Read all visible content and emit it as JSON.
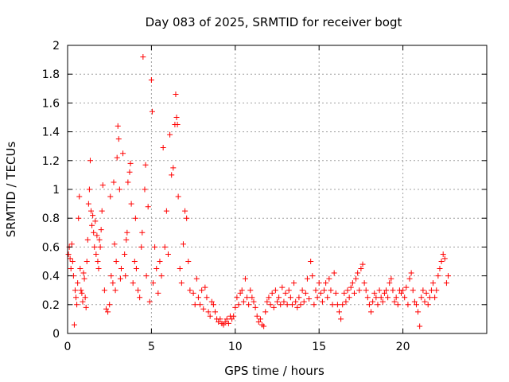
{
  "chart_data": {
    "type": "scatter",
    "title": "Day 083 of 2025, SRMTID for receiver bogt",
    "xlabel": "GPS time / hours",
    "ylabel": "SRMTID / TECUs",
    "xlim": [
      0,
      25
    ],
    "ylim": [
      0,
      2
    ],
    "xticks": [
      0,
      5,
      10,
      15,
      20
    ],
    "xtick_labels": [
      "0",
      "5",
      "10",
      "15",
      "20"
    ],
    "yticks": [
      0,
      0.2,
      0.4,
      0.6,
      0.8,
      1,
      1.2,
      1.4,
      1.6,
      1.8,
      2
    ],
    "ytick_labels": [
      "0",
      "0.2",
      "0.4",
      "0.6",
      "0.8",
      "1",
      "1.2",
      "1.4",
      "1.6",
      "1.8",
      "2"
    ],
    "grid": true,
    "marker": "+",
    "series": [
      {
        "name": "SRMTID",
        "color": "#ff0000",
        "points": [
          [
            0.05,
            0.55
          ],
          [
            0.1,
            0.6
          ],
          [
            0.15,
            0.52
          ],
          [
            0.2,
            0.45
          ],
          [
            0.25,
            0.62
          ],
          [
            0.3,
            0.5
          ],
          [
            0.35,
            0.4
          ],
          [
            0.4,
            0.06
          ],
          [
            0.45,
            0.3
          ],
          [
            0.5,
            0.25
          ],
          [
            0.55,
            0.2
          ],
          [
            0.6,
            0.35
          ],
          [
            0.65,
            0.8
          ],
          [
            0.7,
            0.95
          ],
          [
            0.75,
            0.45
          ],
          [
            0.8,
            0.3
          ],
          [
            0.85,
            0.28
          ],
          [
            0.9,
            0.22
          ],
          [
            0.95,
            0.42
          ],
          [
            1.0,
            0.38
          ],
          [
            1.05,
            0.25
          ],
          [
            1.1,
            0.18
          ],
          [
            1.15,
            0.5
          ],
          [
            1.2,
            0.65
          ],
          [
            1.25,
            0.9
          ],
          [
            1.3,
            1.0
          ],
          [
            1.35,
            1.2
          ],
          [
            1.4,
            0.85
          ],
          [
            1.45,
            0.75
          ],
          [
            1.5,
            0.82
          ],
          [
            1.55,
            0.7
          ],
          [
            1.6,
            0.6
          ],
          [
            1.65,
            0.78
          ],
          [
            1.7,
            0.55
          ],
          [
            1.75,
            0.68
          ],
          [
            1.8,
            0.5
          ],
          [
            1.85,
            0.45
          ],
          [
            1.9,
            0.65
          ],
          [
            1.95,
            0.6
          ],
          [
            2.0,
            0.72
          ],
          [
            2.05,
            0.85
          ],
          [
            2.1,
            1.03
          ],
          [
            2.2,
            0.3
          ],
          [
            2.3,
            0.17
          ],
          [
            2.4,
            0.15
          ],
          [
            2.5,
            0.2
          ],
          [
            2.55,
            0.95
          ],
          [
            2.6,
            0.4
          ],
          [
            2.7,
            0.35
          ],
          [
            2.75,
            1.05
          ],
          [
            2.8,
            0.62
          ],
          [
            2.85,
            0.3
          ],
          [
            2.9,
            0.5
          ],
          [
            2.95,
            1.22
          ],
          [
            3.0,
            1.44
          ],
          [
            3.05,
            1.35
          ],
          [
            3.1,
            1.0
          ],
          [
            3.15,
            0.38
          ],
          [
            3.2,
            0.45
          ],
          [
            3.3,
            1.25
          ],
          [
            3.4,
            0.55
          ],
          [
            3.45,
            0.4
          ],
          [
            3.5,
            0.65
          ],
          [
            3.55,
            0.7
          ],
          [
            3.6,
            1.05
          ],
          [
            3.7,
            1.12
          ],
          [
            3.75,
            1.18
          ],
          [
            3.8,
            0.9
          ],
          [
            3.9,
            0.35
          ],
          [
            4.0,
            0.5
          ],
          [
            4.05,
            0.8
          ],
          [
            4.1,
            0.45
          ],
          [
            4.2,
            0.3
          ],
          [
            4.3,
            0.25
          ],
          [
            4.4,
            0.6
          ],
          [
            4.45,
            0.7
          ],
          [
            4.5,
            1.92
          ],
          [
            4.6,
            1.0
          ],
          [
            4.65,
            1.17
          ],
          [
            4.7,
            0.4
          ],
          [
            4.8,
            0.88
          ],
          [
            4.9,
            0.22
          ],
          [
            5.0,
            1.76
          ],
          [
            5.05,
            1.54
          ],
          [
            5.1,
            0.35
          ],
          [
            5.2,
            0.6
          ],
          [
            5.3,
            0.45
          ],
          [
            5.4,
            0.28
          ],
          [
            5.5,
            0.5
          ],
          [
            5.6,
            0.4
          ],
          [
            5.7,
            1.29
          ],
          [
            5.8,
            0.6
          ],
          [
            5.9,
            0.85
          ],
          [
            6.0,
            0.55
          ],
          [
            6.1,
            1.38
          ],
          [
            6.2,
            1.1
          ],
          [
            6.3,
            1.15
          ],
          [
            6.4,
            1.45
          ],
          [
            6.45,
            1.66
          ],
          [
            6.5,
            1.5
          ],
          [
            6.55,
            1.45
          ],
          [
            6.6,
            0.95
          ],
          [
            6.7,
            0.45
          ],
          [
            6.8,
            0.35
          ],
          [
            6.9,
            0.62
          ],
          [
            7.0,
            0.85
          ],
          [
            7.1,
            0.8
          ],
          [
            7.2,
            0.5
          ],
          [
            7.3,
            0.3
          ],
          [
            7.5,
            0.28
          ],
          [
            7.6,
            0.2
          ],
          [
            7.7,
            0.38
          ],
          [
            7.8,
            0.25
          ],
          [
            7.9,
            0.2
          ],
          [
            8.0,
            0.3
          ],
          [
            8.1,
            0.17
          ],
          [
            8.2,
            0.32
          ],
          [
            8.3,
            0.25
          ],
          [
            8.4,
            0.15
          ],
          [
            8.5,
            0.12
          ],
          [
            8.6,
            0.22
          ],
          [
            8.7,
            0.2
          ],
          [
            8.8,
            0.15
          ],
          [
            8.9,
            0.1
          ],
          [
            9.0,
            0.08
          ],
          [
            9.1,
            0.1
          ],
          [
            9.2,
            0.07
          ],
          [
            9.3,
            0.06
          ],
          [
            9.4,
            0.08
          ],
          [
            9.5,
            0.1
          ],
          [
            9.6,
            0.07
          ],
          [
            9.7,
            0.12
          ],
          [
            9.8,
            0.1
          ],
          [
            9.9,
            0.12
          ],
          [
            10.0,
            0.18
          ],
          [
            10.1,
            0.25
          ],
          [
            10.2,
            0.2
          ],
          [
            10.3,
            0.28
          ],
          [
            10.4,
            0.3
          ],
          [
            10.5,
            0.22
          ],
          [
            10.6,
            0.38
          ],
          [
            10.7,
            0.25
          ],
          [
            10.8,
            0.2
          ],
          [
            10.9,
            0.3
          ],
          [
            11.0,
            0.25
          ],
          [
            11.1,
            0.22
          ],
          [
            11.2,
            0.18
          ],
          [
            11.3,
            0.12
          ],
          [
            11.4,
            0.08
          ],
          [
            11.5,
            0.1
          ],
          [
            11.6,
            0.06
          ],
          [
            11.7,
            0.05
          ],
          [
            11.8,
            0.15
          ],
          [
            11.9,
            0.22
          ],
          [
            12.0,
            0.25
          ],
          [
            12.1,
            0.2
          ],
          [
            12.2,
            0.28
          ],
          [
            12.3,
            0.18
          ],
          [
            12.4,
            0.3
          ],
          [
            12.5,
            0.22
          ],
          [
            12.6,
            0.25
          ],
          [
            12.7,
            0.2
          ],
          [
            12.8,
            0.32
          ],
          [
            12.9,
            0.22
          ],
          [
            13.0,
            0.28
          ],
          [
            13.1,
            0.2
          ],
          [
            13.2,
            0.3
          ],
          [
            13.3,
            0.25
          ],
          [
            13.4,
            0.2
          ],
          [
            13.5,
            0.35
          ],
          [
            13.6,
            0.22
          ],
          [
            13.7,
            0.18
          ],
          [
            13.8,
            0.25
          ],
          [
            13.9,
            0.2
          ],
          [
            14.0,
            0.3
          ],
          [
            14.1,
            0.22
          ],
          [
            14.2,
            0.28
          ],
          [
            14.3,
            0.38
          ],
          [
            14.4,
            0.24
          ],
          [
            14.5,
            0.5
          ],
          [
            14.6,
            0.4
          ],
          [
            14.7,
            0.2
          ],
          [
            14.8,
            0.3
          ],
          [
            14.9,
            0.25
          ],
          [
            15.0,
            0.35
          ],
          [
            15.1,
            0.28
          ],
          [
            15.2,
            0.22
          ],
          [
            15.3,
            0.3
          ],
          [
            15.4,
            0.35
          ],
          [
            15.5,
            0.25
          ],
          [
            15.6,
            0.38
          ],
          [
            15.7,
            0.3
          ],
          [
            15.8,
            0.2
          ],
          [
            15.9,
            0.42
          ],
          [
            16.0,
            0.28
          ],
          [
            16.1,
            0.2
          ],
          [
            16.2,
            0.15
          ],
          [
            16.3,
            0.1
          ],
          [
            16.4,
            0.2
          ],
          [
            16.5,
            0.28
          ],
          [
            16.6,
            0.22
          ],
          [
            16.7,
            0.3
          ],
          [
            16.8,
            0.25
          ],
          [
            16.9,
            0.32
          ],
          [
            17.0,
            0.35
          ],
          [
            17.1,
            0.28
          ],
          [
            17.2,
            0.38
          ],
          [
            17.3,
            0.42
          ],
          [
            17.4,
            0.3
          ],
          [
            17.5,
            0.45
          ],
          [
            17.6,
            0.48
          ],
          [
            17.7,
            0.35
          ],
          [
            17.8,
            0.3
          ],
          [
            17.9,
            0.25
          ],
          [
            18.0,
            0.2
          ],
          [
            18.1,
            0.15
          ],
          [
            18.2,
            0.22
          ],
          [
            18.3,
            0.28
          ],
          [
            18.4,
            0.25
          ],
          [
            18.5,
            0.2
          ],
          [
            18.6,
            0.3
          ],
          [
            18.7,
            0.25
          ],
          [
            18.8,
            0.22
          ],
          [
            18.9,
            0.28
          ],
          [
            19.0,
            0.3
          ],
          [
            19.1,
            0.25
          ],
          [
            19.2,
            0.35
          ],
          [
            19.3,
            0.38
          ],
          [
            19.4,
            0.3
          ],
          [
            19.5,
            0.22
          ],
          [
            19.6,
            0.25
          ],
          [
            19.7,
            0.2
          ],
          [
            19.8,
            0.3
          ],
          [
            19.9,
            0.28
          ],
          [
            20.0,
            0.3
          ],
          [
            20.1,
            0.25
          ],
          [
            20.2,
            0.32
          ],
          [
            20.3,
            0.2
          ],
          [
            20.4,
            0.38
          ],
          [
            20.5,
            0.42
          ],
          [
            20.6,
            0.3
          ],
          [
            20.7,
            0.22
          ],
          [
            20.8,
            0.2
          ],
          [
            20.9,
            0.15
          ],
          [
            21.0,
            0.05
          ],
          [
            21.1,
            0.25
          ],
          [
            21.2,
            0.3
          ],
          [
            21.3,
            0.22
          ],
          [
            21.4,
            0.28
          ],
          [
            21.5,
            0.2
          ],
          [
            21.6,
            0.25
          ],
          [
            21.7,
            0.3
          ],
          [
            21.8,
            0.35
          ],
          [
            21.9,
            0.25
          ],
          [
            22.0,
            0.3
          ],
          [
            22.1,
            0.4
          ],
          [
            22.2,
            0.45
          ],
          [
            22.3,
            0.5
          ],
          [
            22.4,
            0.55
          ],
          [
            22.5,
            0.52
          ],
          [
            22.6,
            0.35
          ],
          [
            22.7,
            0.4
          ]
        ]
      }
    ]
  }
}
